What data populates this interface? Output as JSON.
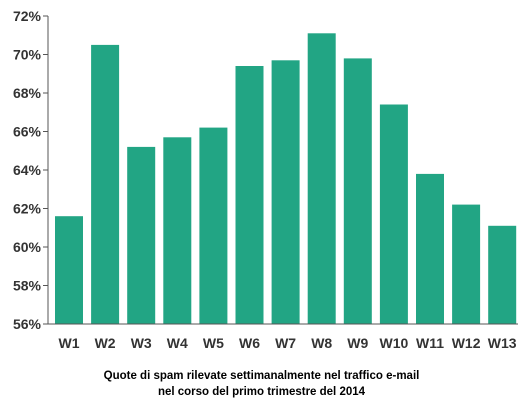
{
  "chart_data": {
    "type": "bar",
    "title": "",
    "xlabel": "",
    "ylabel": "",
    "categories": [
      "W1",
      "W2",
      "W3",
      "W4",
      "W5",
      "W6",
      "W7",
      "W8",
      "W9",
      "W10",
      "W11",
      "W12",
      "W13"
    ],
    "values": [
      61.6,
      70.5,
      65.2,
      65.7,
      66.2,
      69.4,
      69.7,
      71.1,
      69.8,
      67.4,
      63.8,
      62.2,
      61.1
    ],
    "ylim": [
      56,
      72
    ],
    "yticks": [
      56,
      58,
      60,
      62,
      64,
      66,
      68,
      70,
      72
    ],
    "ytick_suffix": "%",
    "grid": false,
    "bar_color": "#22a584"
  },
  "caption": {
    "line1": "Quote di spam rilevate settimanalmente nel traffico e-mail",
    "line2": "nel corso del primo trimestre del 2014"
  }
}
